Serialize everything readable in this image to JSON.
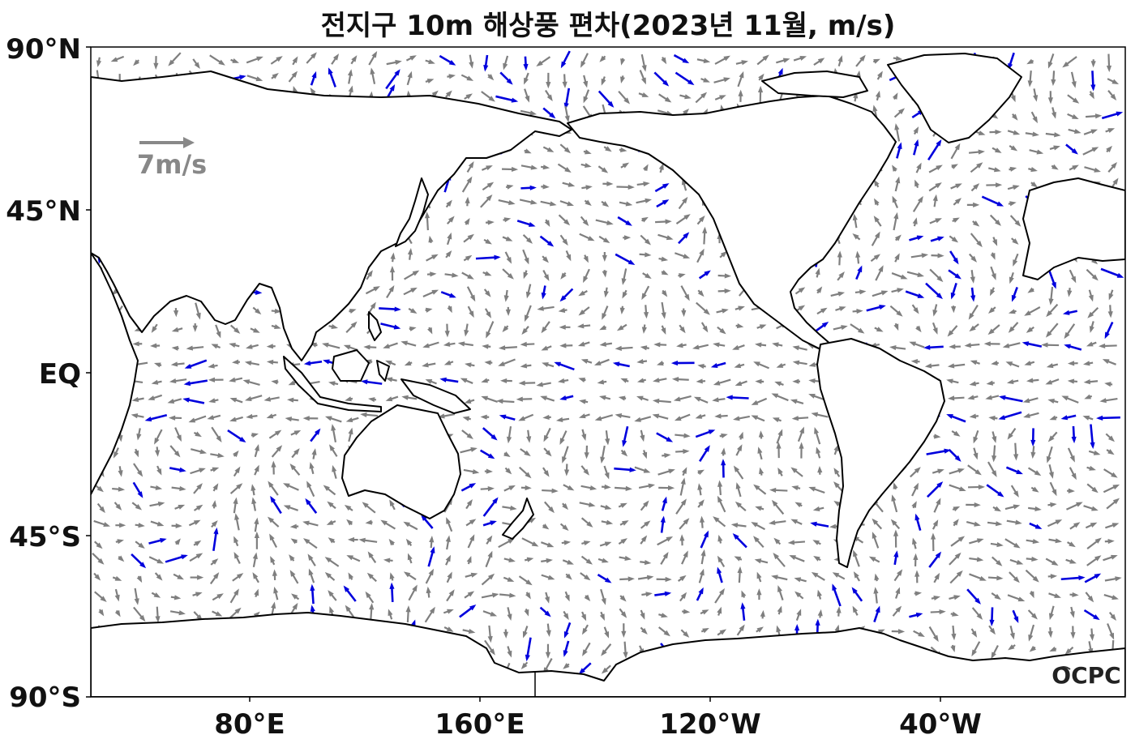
{
  "title": "전지구 10m 해상풍 편차(2023년 11월, m/s)",
  "axes": {
    "lat_labels": [
      "90°N",
      "45°N",
      "EQ",
      "45°S",
      "90°S"
    ],
    "lon_labels": [
      "80°E",
      "160°E",
      "120°W",
      "40°W"
    ]
  },
  "legend": {
    "reference_label": "7m/s"
  },
  "logo": {
    "text": "OCPC"
  },
  "colors": {
    "normal_arrow": "#7f7f7f",
    "significant_arrow": "#0000dd",
    "coastline": "#000000",
    "reference_arrow": "#888888"
  }
}
